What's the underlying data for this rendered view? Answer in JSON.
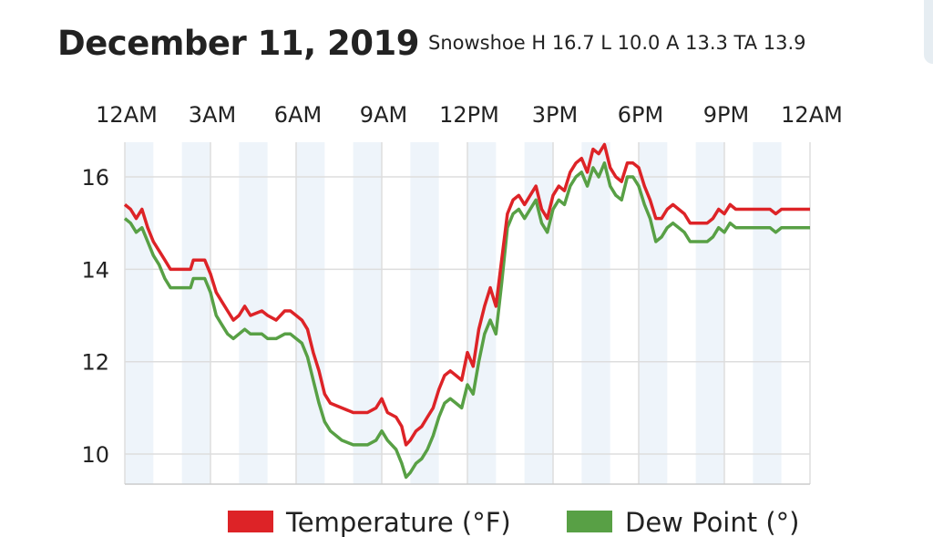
{
  "header": {
    "title": "December 11, 2019",
    "subtitle": "Snowshoe H 16.7 L 10.0 A 13.3 TA 13.9"
  },
  "chart_data": {
    "type": "line",
    "xlim": [
      0,
      24
    ],
    "ylim": [
      9.35,
      16.75
    ],
    "x_ticks": [
      {
        "x": 0,
        "label": "12AM"
      },
      {
        "x": 3,
        "label": "3AM"
      },
      {
        "x": 6,
        "label": "6AM"
      },
      {
        "x": 9,
        "label": "9AM"
      },
      {
        "x": 12,
        "label": "12PM"
      },
      {
        "x": 15,
        "label": "3PM"
      },
      {
        "x": 18,
        "label": "6PM"
      },
      {
        "x": 21,
        "label": "9PM"
      },
      {
        "x": 24,
        "label": "12AM"
      }
    ],
    "y_ticks": [
      10,
      12,
      14,
      16
    ],
    "shaded_bands": [
      [
        0,
        1
      ],
      [
        2,
        3
      ],
      [
        4,
        5
      ],
      [
        6,
        7
      ],
      [
        8,
        9
      ],
      [
        10,
        11
      ],
      [
        12,
        13
      ],
      [
        14,
        15
      ],
      [
        16,
        17
      ],
      [
        18,
        19
      ],
      [
        20,
        21
      ],
      [
        22,
        23
      ]
    ],
    "grid": true,
    "legend_position": "bottom",
    "colors": {
      "temperature": "#dd2327",
      "dew_point": "#58a045",
      "band": "#eef4fa",
      "grid": "#dddddd"
    },
    "series": [
      {
        "name": "Temperature (°F)",
        "color": "#dd2327",
        "points": [
          [
            0,
            15.4
          ],
          [
            0.2,
            15.3
          ],
          [
            0.4,
            15.1
          ],
          [
            0.6,
            15.3
          ],
          [
            0.8,
            14.9
          ],
          [
            1.0,
            14.6
          ],
          [
            1.2,
            14.4
          ],
          [
            1.4,
            14.2
          ],
          [
            1.6,
            14.0
          ],
          [
            2.0,
            14.0
          ],
          [
            2.3,
            14.0
          ],
          [
            2.4,
            14.2
          ],
          [
            2.8,
            14.2
          ],
          [
            3.0,
            13.9
          ],
          [
            3.2,
            13.5
          ],
          [
            3.4,
            13.3
          ],
          [
            3.6,
            13.1
          ],
          [
            3.8,
            12.9
          ],
          [
            4.0,
            13.0
          ],
          [
            4.2,
            13.2
          ],
          [
            4.4,
            13.0
          ],
          [
            4.8,
            13.1
          ],
          [
            5.0,
            13.0
          ],
          [
            5.3,
            12.9
          ],
          [
            5.6,
            13.1
          ],
          [
            5.8,
            13.1
          ],
          [
            6.0,
            13.0
          ],
          [
            6.2,
            12.9
          ],
          [
            6.4,
            12.7
          ],
          [
            6.6,
            12.2
          ],
          [
            6.8,
            11.8
          ],
          [
            7.0,
            11.3
          ],
          [
            7.2,
            11.1
          ],
          [
            7.6,
            11.0
          ],
          [
            8.0,
            10.9
          ],
          [
            8.5,
            10.9
          ],
          [
            8.8,
            11.0
          ],
          [
            9.0,
            11.2
          ],
          [
            9.2,
            10.9
          ],
          [
            9.5,
            10.8
          ],
          [
            9.7,
            10.6
          ],
          [
            9.85,
            10.2
          ],
          [
            10.0,
            10.3
          ],
          [
            10.2,
            10.5
          ],
          [
            10.4,
            10.6
          ],
          [
            10.6,
            10.8
          ],
          [
            10.8,
            11.0
          ],
          [
            11.0,
            11.4
          ],
          [
            11.2,
            11.7
          ],
          [
            11.4,
            11.8
          ],
          [
            11.6,
            11.7
          ],
          [
            11.8,
            11.6
          ],
          [
            12.0,
            12.2
          ],
          [
            12.2,
            11.9
          ],
          [
            12.4,
            12.7
          ],
          [
            12.6,
            13.2
          ],
          [
            12.8,
            13.6
          ],
          [
            13.0,
            13.2
          ],
          [
            13.2,
            14.2
          ],
          [
            13.4,
            15.2
          ],
          [
            13.6,
            15.5
          ],
          [
            13.8,
            15.6
          ],
          [
            14.0,
            15.4
          ],
          [
            14.2,
            15.6
          ],
          [
            14.4,
            15.8
          ],
          [
            14.6,
            15.3
          ],
          [
            14.8,
            15.1
          ],
          [
            15.0,
            15.6
          ],
          [
            15.2,
            15.8
          ],
          [
            15.4,
            15.7
          ],
          [
            15.6,
            16.1
          ],
          [
            15.8,
            16.3
          ],
          [
            16.0,
            16.4
          ],
          [
            16.2,
            16.1
          ],
          [
            16.4,
            16.6
          ],
          [
            16.6,
            16.5
          ],
          [
            16.8,
            16.7
          ],
          [
            17.0,
            16.2
          ],
          [
            17.2,
            16.0
          ],
          [
            17.4,
            15.9
          ],
          [
            17.6,
            16.3
          ],
          [
            17.8,
            16.3
          ],
          [
            18.0,
            16.2
          ],
          [
            18.2,
            15.8
          ],
          [
            18.4,
            15.5
          ],
          [
            18.6,
            15.1
          ],
          [
            18.8,
            15.1
          ],
          [
            19.0,
            15.3
          ],
          [
            19.2,
            15.4
          ],
          [
            19.4,
            15.3
          ],
          [
            19.6,
            15.2
          ],
          [
            19.8,
            15.0
          ],
          [
            20.0,
            15.0
          ],
          [
            20.4,
            15.0
          ],
          [
            20.6,
            15.1
          ],
          [
            20.8,
            15.3
          ],
          [
            21.0,
            15.2
          ],
          [
            21.2,
            15.4
          ],
          [
            21.4,
            15.3
          ],
          [
            21.6,
            15.3
          ],
          [
            22.0,
            15.3
          ],
          [
            22.6,
            15.3
          ],
          [
            22.8,
            15.2
          ],
          [
            23.0,
            15.3
          ],
          [
            23.5,
            15.3
          ],
          [
            24.0,
            15.3
          ]
        ]
      },
      {
        "name": "Dew Point (°)",
        "color": "#58a045",
        "points": [
          [
            0,
            15.1
          ],
          [
            0.2,
            15.0
          ],
          [
            0.4,
            14.8
          ],
          [
            0.6,
            14.9
          ],
          [
            0.8,
            14.6
          ],
          [
            1.0,
            14.3
          ],
          [
            1.2,
            14.1
          ],
          [
            1.4,
            13.8
          ],
          [
            1.6,
            13.6
          ],
          [
            2.0,
            13.6
          ],
          [
            2.3,
            13.6
          ],
          [
            2.4,
            13.8
          ],
          [
            2.8,
            13.8
          ],
          [
            3.0,
            13.5
          ],
          [
            3.2,
            13.0
          ],
          [
            3.4,
            12.8
          ],
          [
            3.6,
            12.6
          ],
          [
            3.8,
            12.5
          ],
          [
            4.0,
            12.6
          ],
          [
            4.2,
            12.7
          ],
          [
            4.4,
            12.6
          ],
          [
            4.8,
            12.6
          ],
          [
            5.0,
            12.5
          ],
          [
            5.3,
            12.5
          ],
          [
            5.6,
            12.6
          ],
          [
            5.8,
            12.6
          ],
          [
            6.0,
            12.5
          ],
          [
            6.2,
            12.4
          ],
          [
            6.4,
            12.1
          ],
          [
            6.6,
            11.6
          ],
          [
            6.8,
            11.1
          ],
          [
            7.0,
            10.7
          ],
          [
            7.2,
            10.5
          ],
          [
            7.6,
            10.3
          ],
          [
            8.0,
            10.2
          ],
          [
            8.5,
            10.2
          ],
          [
            8.8,
            10.3
          ],
          [
            9.0,
            10.5
          ],
          [
            9.2,
            10.3
          ],
          [
            9.5,
            10.1
          ],
          [
            9.7,
            9.8
          ],
          [
            9.85,
            9.5
          ],
          [
            10.0,
            9.6
          ],
          [
            10.2,
            9.8
          ],
          [
            10.4,
            9.9
          ],
          [
            10.6,
            10.1
          ],
          [
            10.8,
            10.4
          ],
          [
            11.0,
            10.8
          ],
          [
            11.2,
            11.1
          ],
          [
            11.4,
            11.2
          ],
          [
            11.6,
            11.1
          ],
          [
            11.8,
            11.0
          ],
          [
            12.0,
            11.5
          ],
          [
            12.2,
            11.3
          ],
          [
            12.4,
            12.0
          ],
          [
            12.6,
            12.6
          ],
          [
            12.8,
            12.9
          ],
          [
            13.0,
            12.6
          ],
          [
            13.2,
            13.7
          ],
          [
            13.4,
            14.9
          ],
          [
            13.6,
            15.2
          ],
          [
            13.8,
            15.3
          ],
          [
            14.0,
            15.1
          ],
          [
            14.2,
            15.3
          ],
          [
            14.4,
            15.5
          ],
          [
            14.6,
            15.0
          ],
          [
            14.8,
            14.8
          ],
          [
            15.0,
            15.3
          ],
          [
            15.2,
            15.5
          ],
          [
            15.4,
            15.4
          ],
          [
            15.6,
            15.8
          ],
          [
            15.8,
            16.0
          ],
          [
            16.0,
            16.1
          ],
          [
            16.2,
            15.8
          ],
          [
            16.4,
            16.2
          ],
          [
            16.6,
            16.0
          ],
          [
            16.8,
            16.3
          ],
          [
            17.0,
            15.8
          ],
          [
            17.2,
            15.6
          ],
          [
            17.4,
            15.5
          ],
          [
            17.6,
            16.0
          ],
          [
            17.8,
            16.0
          ],
          [
            18.0,
            15.8
          ],
          [
            18.2,
            15.4
          ],
          [
            18.4,
            15.1
          ],
          [
            18.6,
            14.6
          ],
          [
            18.8,
            14.7
          ],
          [
            19.0,
            14.9
          ],
          [
            19.2,
            15.0
          ],
          [
            19.4,
            14.9
          ],
          [
            19.6,
            14.8
          ],
          [
            19.8,
            14.6
          ],
          [
            20.0,
            14.6
          ],
          [
            20.4,
            14.6
          ],
          [
            20.6,
            14.7
          ],
          [
            20.8,
            14.9
          ],
          [
            21.0,
            14.8
          ],
          [
            21.2,
            15.0
          ],
          [
            21.4,
            14.9
          ],
          [
            21.6,
            14.9
          ],
          [
            22.0,
            14.9
          ],
          [
            22.6,
            14.9
          ],
          [
            22.8,
            14.8
          ],
          [
            23.0,
            14.9
          ],
          [
            23.5,
            14.9
          ],
          [
            24.0,
            14.9
          ]
        ]
      }
    ]
  }
}
